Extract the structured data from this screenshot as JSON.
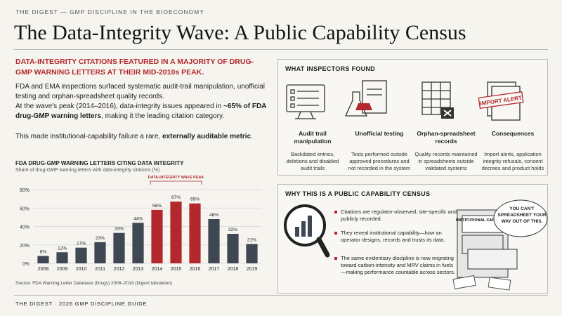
{
  "header": {
    "kicker": "THE DIGEST — GMP DISCIPLINE IN THE BIOECONOMY",
    "title": "The Data-Integrity Wave: A Public Capability Census"
  },
  "lead": "DATA-INTEGRITY CITATIONS FEATURED IN A MAJORITY OF DRUG-GMP WARNING LETTERS AT THEIR MID-2010s PEAK.",
  "body": {
    "p1": "FDA and EMA inspections surfaced systematic audit-trail manipulation, unofficial testing and orphan-spreadsheet quality records.",
    "p2": [
      "At the wave's peak (2014–2016), data-integrity issues appeared in ",
      "~65% of FDA drug-GMP warning letters",
      ", making it the leading citation category."
    ],
    "p3": [
      "This made institutional-capability failure a rare, ",
      "externally auditable metric",
      "."
    ]
  },
  "chart_data": {
    "type": "bar",
    "title": "FDA DRUG-GMP WARNING LETTERS CITING DATA INTEGRITY",
    "subtitle": "Share of drug-GMP warning letters with data-integrity citations (%)",
    "categories": [
      "2008",
      "2009",
      "2010",
      "2011",
      "2012",
      "2013",
      "2014",
      "2015",
      "2016",
      "2017",
      "2018",
      "2019"
    ],
    "values": [
      8,
      12,
      17,
      23,
      33,
      44,
      58,
      67,
      65,
      48,
      32,
      21
    ],
    "value_labels": [
      "8%",
      "12%",
      "17%",
      "23%",
      "33%",
      "44%",
      "58%",
      "67%",
      "65%",
      "48%",
      "32%",
      "21%"
    ],
    "colors": [
      "#3f4753",
      "#3f4753",
      "#3f4753",
      "#3f4753",
      "#3f4753",
      "#3f4753",
      "#b3282d",
      "#b3282d",
      "#b3282d",
      "#3f4753",
      "#3f4753",
      "#3f4753"
    ],
    "ylim": [
      0,
      80
    ],
    "yticks": [
      {
        "value": 0,
        "label": "0%"
      },
      {
        "value": 20,
        "label": "20%"
      },
      {
        "value": 40,
        "label": "40%"
      },
      {
        "value": 60,
        "label": "60%"
      },
      {
        "value": 80,
        "label": "80%"
      }
    ],
    "grid": true,
    "annotation": "DATA-INTEGRITY WAVE PEAK",
    "source": "Source: FDA Warning Letter Database (Drugs) 2008–2019 (Digest tabulation)"
  },
  "found": {
    "heading": "WHAT INSPECTORS FOUND",
    "icon_label": "IMPORT ALERT",
    "items": [
      {
        "title": "Audit trail manipulation",
        "text": "Backdated entries, deletions and disabled audit trails"
      },
      {
        "title": "Unofficial testing",
        "text": "Tests performed outside approved procedures and not recorded in the system"
      },
      {
        "title": "Orphan-spreadsheet records",
        "text": "Quality records maintained in spreadsheets outside validated systems"
      },
      {
        "title": "Consequences",
        "text": "Import alerts, application integrity refusals, consent decrees and product holds"
      }
    ]
  },
  "census": {
    "heading": "WHY THIS IS A PUBLIC CAPABILITY CENSUS",
    "bullets": [
      "Citations are regulator-observed, site-specific and publicly recorded.",
      "They reveal institutional capability—how an operator designs, records and trusts its data.",
      "The same evidentiary discipline is now migrating toward carbon-intensity and MRV claims in fuels—making performance countable across sectors."
    ],
    "bubble": "YOU CAN'T SPREADSHEET YOUR WAY OUT OF THIS.",
    "cabinet": "INSTITUTIONAL CAPABILITY"
  },
  "footer": "THE DIGEST · 2026 GMP DISCIPLINE GUIDE"
}
